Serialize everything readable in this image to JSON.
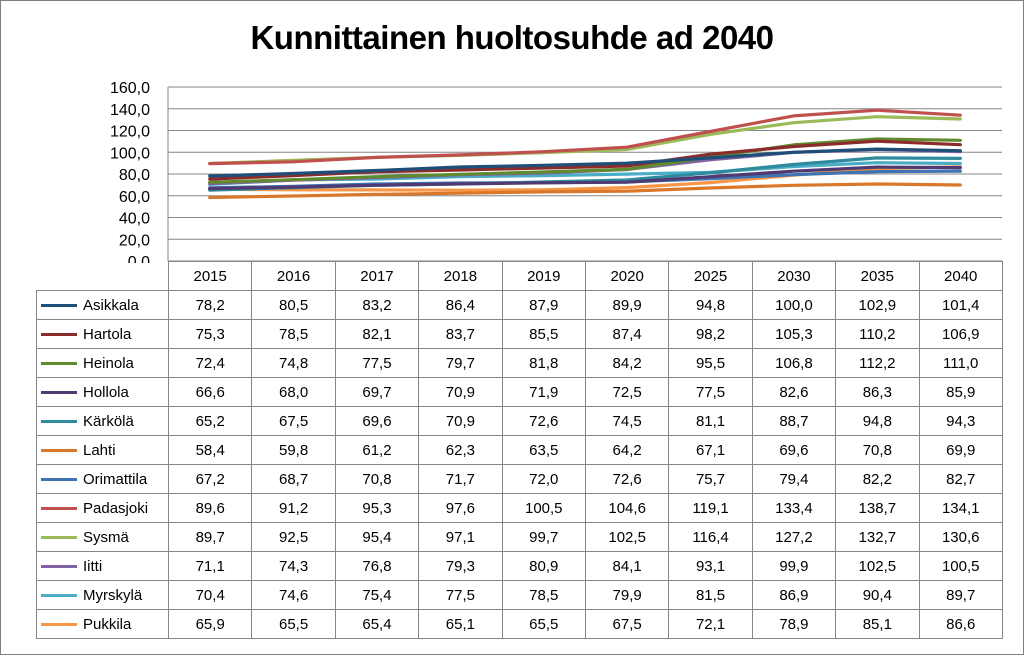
{
  "chart_data": {
    "type": "line",
    "title": "Kunnittainen huoltosuhde ad 2040",
    "xlabel": "",
    "ylabel": "",
    "ylim": [
      0,
      160
    ],
    "yticks": [
      "0,0",
      "20,0",
      "40,0",
      "60,0",
      "80,0",
      "100,0",
      "120,0",
      "140,0",
      "160,0"
    ],
    "grid": true,
    "legend": "data-table",
    "categories": [
      "2015",
      "2016",
      "2017",
      "2018",
      "2019",
      "2020",
      "2025",
      "2030",
      "2035",
      "2040"
    ],
    "series": [
      {
        "name": "Asikkala",
        "color": "#1f4e79",
        "values": [
          78.2,
          80.5,
          83.2,
          86.4,
          87.9,
          89.9,
          94.8,
          100.0,
          102.9,
          101.4
        ],
        "labels": [
          "78,2",
          "80,5",
          "83,2",
          "86,4",
          "87,9",
          "89,9",
          "94,8",
          "100,0",
          "102,9",
          "101,4"
        ]
      },
      {
        "name": "Hartola",
        "color": "#8b2c2a",
        "values": [
          75.3,
          78.5,
          82.1,
          83.7,
          85.5,
          87.4,
          98.2,
          105.3,
          110.2,
          106.9
        ],
        "labels": [
          "75,3",
          "78,5",
          "82,1",
          "83,7",
          "85,5",
          "87,4",
          "98,2",
          "105,3",
          "110,2",
          "106,9"
        ]
      },
      {
        "name": "Heinola",
        "color": "#5f8a2e",
        "values": [
          72.4,
          74.8,
          77.5,
          79.7,
          81.8,
          84.2,
          95.5,
          106.8,
          112.2,
          111.0
        ],
        "labels": [
          "72,4",
          "74,8",
          "77,5",
          "79,7",
          "81,8",
          "84,2",
          "95,5",
          "106,8",
          "112,2",
          "111,0"
        ]
      },
      {
        "name": "Hollola",
        "color": "#4f3a73",
        "values": [
          66.6,
          68.0,
          69.7,
          70.9,
          71.9,
          72.5,
          77.5,
          82.6,
          86.3,
          85.9
        ],
        "labels": [
          "66,6",
          "68,0",
          "69,7",
          "70,9",
          "71,9",
          "72,5",
          "77,5",
          "82,6",
          "86,3",
          "85,9"
        ]
      },
      {
        "name": "Kärkölä",
        "color": "#2e8b9e",
        "values": [
          65.2,
          67.5,
          69.6,
          70.9,
          72.6,
          74.5,
          81.1,
          88.7,
          94.8,
          94.3
        ],
        "labels": [
          "65,2",
          "67,5",
          "69,6",
          "70,9",
          "72,6",
          "74,5",
          "81,1",
          "88,7",
          "94,8",
          "94,3"
        ]
      },
      {
        "name": "Lahti",
        "color": "#d9782b",
        "values": [
          58.4,
          59.8,
          61.2,
          62.3,
          63.5,
          64.2,
          67.1,
          69.6,
          70.8,
          69.9
        ],
        "labels": [
          "58,4",
          "59,8",
          "61,2",
          "62,3",
          "63,5",
          "64,2",
          "67,1",
          "69,6",
          "70,8",
          "69,9"
        ]
      },
      {
        "name": "Orimattila",
        "color": "#3f73b2",
        "values": [
          67.2,
          68.7,
          70.8,
          71.7,
          72.0,
          72.6,
          75.7,
          79.4,
          82.2,
          82.7
        ],
        "labels": [
          "67,2",
          "68,7",
          "70,8",
          "71,7",
          "72,0",
          "72,6",
          "75,7",
          "79,4",
          "82,2",
          "82,7"
        ]
      },
      {
        "name": "Padasjoki",
        "color": "#c0504d",
        "values": [
          89.6,
          91.2,
          95.3,
          97.6,
          100.5,
          104.6,
          119.1,
          133.4,
          138.7,
          134.1
        ],
        "labels": [
          "89,6",
          "91,2",
          "95,3",
          "97,6",
          "100,5",
          "104,6",
          "119,1",
          "133,4",
          "138,7",
          "134,1"
        ]
      },
      {
        "name": "Sysmä",
        "color": "#9bbb59",
        "values": [
          89.7,
          92.5,
          95.4,
          97.1,
          99.7,
          102.5,
          116.4,
          127.2,
          132.7,
          130.6
        ],
        "labels": [
          "89,7",
          "92,5",
          "95,4",
          "97,1",
          "99,7",
          "102,5",
          "116,4",
          "127,2",
          "132,7",
          "130,6"
        ]
      },
      {
        "name": "Iitti",
        "color": "#8064a2",
        "values": [
          71.1,
          74.3,
          76.8,
          79.3,
          80.9,
          84.1,
          93.1,
          99.9,
          102.5,
          100.5
        ],
        "labels": [
          "71,1",
          "74,3",
          "76,8",
          "79,3",
          "80,9",
          "84,1",
          "93,1",
          "99,9",
          "102,5",
          "100,5"
        ]
      },
      {
        "name": "Myrskylä",
        "color": "#4bacc6",
        "values": [
          70.4,
          74.6,
          75.4,
          77.5,
          78.5,
          79.9,
          81.5,
          86.9,
          90.4,
          89.7
        ],
        "labels": [
          "70,4",
          "74,6",
          "75,4",
          "77,5",
          "78,5",
          "79,9",
          "81,5",
          "86,9",
          "90,4",
          "89,7"
        ]
      },
      {
        "name": "Pukkila",
        "color": "#f79646",
        "values": [
          65.9,
          65.5,
          65.4,
          65.1,
          65.5,
          67.5,
          72.1,
          78.9,
          85.1,
          86.6
        ],
        "labels": [
          "65,9",
          "65,5",
          "65,4",
          "65,1",
          "65,5",
          "67,5",
          "72,1",
          "78,9",
          "85,1",
          "86,6"
        ]
      }
    ]
  }
}
